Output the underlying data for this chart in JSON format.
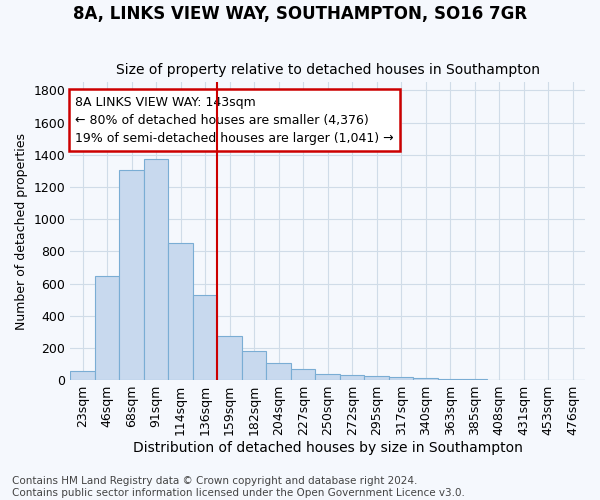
{
  "title": "8A, LINKS VIEW WAY, SOUTHAMPTON, SO16 7GR",
  "subtitle": "Size of property relative to detached houses in Southampton",
  "xlabel": "Distribution of detached houses by size in Southampton",
  "ylabel": "Number of detached properties",
  "bar_color": "#c8d9ee",
  "bar_edge_color": "#7aadd4",
  "vline_color": "#cc0000",
  "vline_x": 5.5,
  "annotation_line1": "8A LINKS VIEW WAY: 143sqm",
  "annotation_line2": "← 80% of detached houses are smaller (4,376)",
  "annotation_line3": "19% of semi-detached houses are larger (1,041) →",
  "annotation_box_color": "#ffffff",
  "annotation_box_edge": "#cc0000",
  "categories": [
    "23sqm",
    "46sqm",
    "68sqm",
    "91sqm",
    "114sqm",
    "136sqm",
    "159sqm",
    "182sqm",
    "204sqm",
    "227sqm",
    "250sqm",
    "272sqm",
    "295sqm",
    "317sqm",
    "340sqm",
    "363sqm",
    "385sqm",
    "408sqm",
    "431sqm",
    "453sqm",
    "476sqm"
  ],
  "values": [
    55,
    645,
    1305,
    1375,
    850,
    530,
    275,
    180,
    105,
    68,
    38,
    30,
    25,
    18,
    13,
    8,
    5,
    3,
    2,
    1,
    0
  ],
  "ylim": [
    0,
    1850
  ],
  "yticks": [
    0,
    200,
    400,
    600,
    800,
    1000,
    1200,
    1400,
    1600,
    1800
  ],
  "footnote": "Contains HM Land Registry data © Crown copyright and database right 2024.\nContains public sector information licensed under the Open Government Licence v3.0.",
  "background_color": "#f5f8fd",
  "grid_color": "#d0dce8",
  "title_fontsize": 12,
  "subtitle_fontsize": 10,
  "xlabel_fontsize": 10,
  "ylabel_fontsize": 9,
  "tick_fontsize": 9,
  "footnote_fontsize": 7.5
}
